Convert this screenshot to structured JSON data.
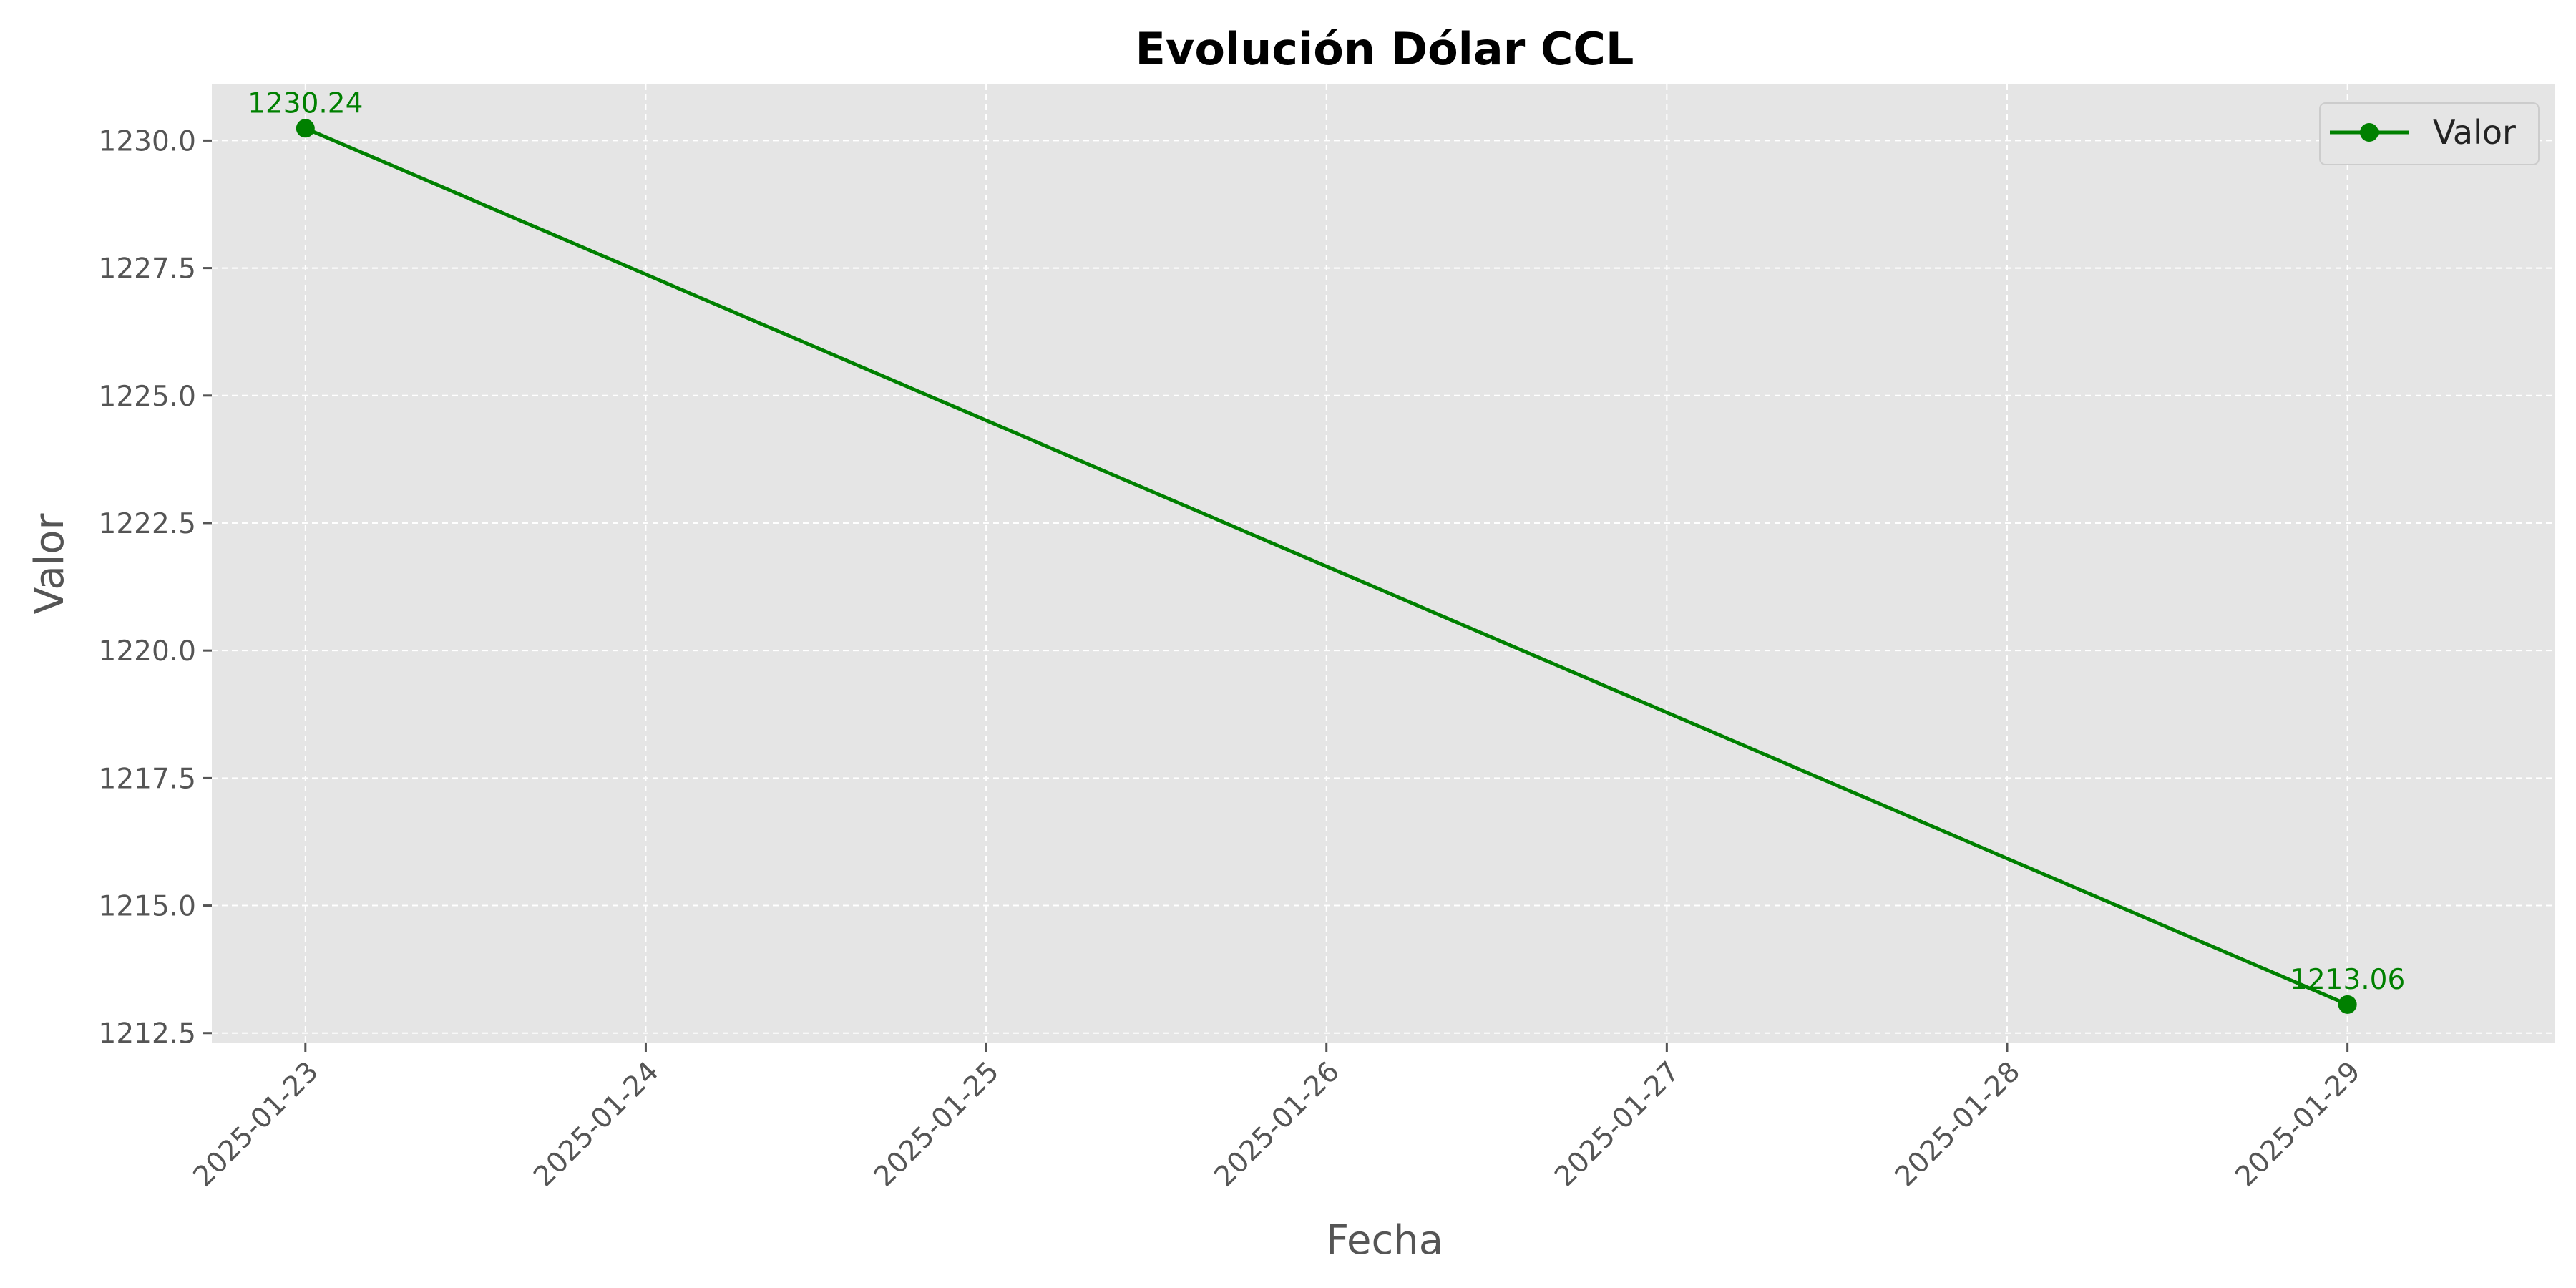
{
  "chart_data": {
    "type": "line",
    "title": "Evolución Dólar CCL",
    "xlabel": "Fecha",
    "ylabel": "Valor",
    "x_ticks": [
      "2025-01-23",
      "2025-01-24",
      "2025-01-25",
      "2025-01-26",
      "2025-01-27",
      "2025-01-28",
      "2025-01-29"
    ],
    "y_ticks": [
      "1212.5",
      "1215.0",
      "1217.5",
      "1220.0",
      "1222.5",
      "1225.0",
      "1227.5",
      "1230.0"
    ],
    "ylim": [
      1212.3,
      1231.1
    ],
    "xlim": [
      "2025-01-22T17:24",
      "2025-01-29T14:36"
    ],
    "grid": true,
    "legend_position": "top-right",
    "series": [
      {
        "name": "Valor",
        "color": "#008000",
        "marker": "circle",
        "points": [
          {
            "x": "2025-01-23",
            "y": 1230.24,
            "label": "1230.24"
          },
          {
            "x": "2025-01-29",
            "y": 1213.06,
            "label": "1213.06"
          }
        ]
      }
    ],
    "colors": {
      "plot_background": "#e5e5e5",
      "grid": "#ffffff",
      "tick_text": "#555555"
    }
  }
}
